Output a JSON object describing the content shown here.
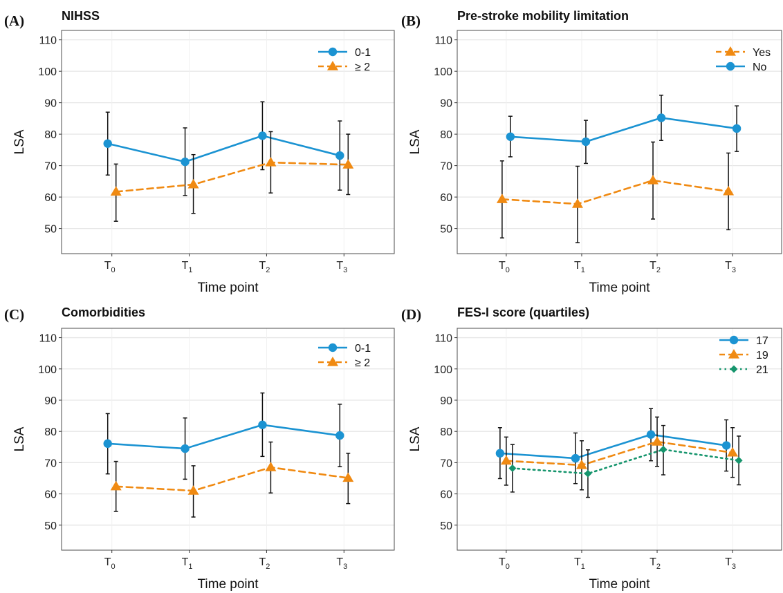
{
  "colors": {
    "blue": "#1b93d2",
    "orange": "#f08a12",
    "green": "#16956d",
    "errorbar": "#111111",
    "grid": "#e6e6e6",
    "frame": "#4d4d4d"
  },
  "chart_data": [
    {
      "type": "line",
      "letter": "(A)",
      "title": "NIHSS",
      "xlabel": "Time point",
      "ylabel": "LSA",
      "ylim": [
        42,
        113
      ],
      "yticks": [
        50,
        60,
        70,
        80,
        90,
        100,
        110
      ],
      "categories": [
        {
          "base": "T",
          "sub": "0"
        },
        {
          "base": "T",
          "sub": "1"
        },
        {
          "base": "T",
          "sub": "2"
        },
        {
          "base": "T",
          "sub": "3"
        }
      ],
      "grid": true,
      "legend": "top-right",
      "series": [
        {
          "name": "0-1",
          "color": "blue",
          "marker": "circle",
          "dash": "solid",
          "values": [
            77,
            71.2,
            79.5,
            73.2
          ],
          "upper": [
            87,
            82,
            90.3,
            84.2
          ],
          "lower": [
            67,
            60.5,
            68.7,
            62.2
          ]
        },
        {
          "name": "≥ 2",
          "color": "orange",
          "marker": "triangle",
          "dash": "dashed",
          "values": [
            61.7,
            64,
            71,
            70.3
          ],
          "upper": [
            70.5,
            73.5,
            80.8,
            80
          ],
          "lower": [
            52.3,
            54.8,
            61.3,
            60.8
          ]
        }
      ]
    },
    {
      "type": "line",
      "letter": "(B)",
      "title": "Pre-stroke mobility limitation",
      "xlabel": "Time point",
      "ylabel": "LSA",
      "ylim": [
        42,
        113
      ],
      "yticks": [
        50,
        60,
        70,
        80,
        90,
        100,
        110
      ],
      "categories": [
        {
          "base": "T",
          "sub": "0"
        },
        {
          "base": "T",
          "sub": "1"
        },
        {
          "base": "T",
          "sub": "2"
        },
        {
          "base": "T",
          "sub": "3"
        }
      ],
      "grid": true,
      "legend": "top-right",
      "series": [
        {
          "name": "Yes",
          "color": "orange",
          "marker": "triangle",
          "dash": "dashed",
          "values": [
            59.3,
            57.8,
            65.3,
            61.8
          ],
          "upper": [
            71.5,
            69.8,
            77.5,
            74
          ],
          "lower": [
            47,
            45.5,
            53,
            49.6
          ]
        },
        {
          "name": "No",
          "color": "blue",
          "marker": "circle",
          "dash": "solid",
          "values": [
            79.2,
            77.6,
            85.2,
            81.8
          ],
          "upper": [
            85.7,
            84.4,
            92.4,
            89
          ],
          "lower": [
            72.8,
            70.7,
            78,
            74.5
          ]
        }
      ]
    },
    {
      "type": "line",
      "letter": "(C)",
      "title": "Comorbidities",
      "xlabel": "Time point",
      "ylabel": "LSA",
      "ylim": [
        42,
        113
      ],
      "yticks": [
        50,
        60,
        70,
        80,
        90,
        100,
        110
      ],
      "categories": [
        {
          "base": "T",
          "sub": "0"
        },
        {
          "base": "T",
          "sub": "1"
        },
        {
          "base": "T",
          "sub": "2"
        },
        {
          "base": "T",
          "sub": "3"
        }
      ],
      "grid": true,
      "legend": "top-right",
      "series": [
        {
          "name": "0-1",
          "color": "blue",
          "marker": "circle",
          "dash": "solid",
          "values": [
            76.1,
            74.5,
            82.1,
            78.7
          ],
          "upper": [
            85.7,
            84.3,
            92.3,
            88.7
          ],
          "lower": [
            66.4,
            64.7,
            72,
            68.7
          ]
        },
        {
          "name": "≥ 2",
          "color": "orange",
          "marker": "triangle",
          "dash": "dashed",
          "values": [
            62.4,
            61,
            68.5,
            65.1
          ],
          "upper": [
            70.4,
            69,
            76.6,
            73
          ],
          "lower": [
            54.4,
            52.6,
            60.3,
            56.9
          ]
        }
      ]
    },
    {
      "type": "line",
      "letter": "(D)",
      "title": "FES-I score (quartiles)",
      "xlabel": "Time point",
      "ylabel": "LSA",
      "ylim": [
        42,
        113
      ],
      "yticks": [
        50,
        60,
        70,
        80,
        90,
        100,
        110
      ],
      "categories": [
        {
          "base": "T",
          "sub": "0"
        },
        {
          "base": "T",
          "sub": "1"
        },
        {
          "base": "T",
          "sub": "2"
        },
        {
          "base": "T",
          "sub": "3"
        }
      ],
      "grid": true,
      "legend": "top-right",
      "series": [
        {
          "name": "17",
          "color": "blue",
          "marker": "circle",
          "dash": "solid",
          "values": [
            73,
            71.4,
            79,
            75.5
          ],
          "upper": [
            81.2,
            79.5,
            87.3,
            83.7
          ],
          "lower": [
            64.9,
            63.3,
            70.6,
            67.3
          ]
        },
        {
          "name": "19",
          "color": "orange",
          "marker": "triangle",
          "dash": "dashed",
          "values": [
            70.6,
            69.2,
            76.7,
            73.2
          ],
          "upper": [
            78.2,
            77,
            84.6,
            81.2
          ],
          "lower": [
            62.8,
            61.3,
            68.8,
            65.3
          ]
        },
        {
          "name": "21",
          "color": "green",
          "marker": "diamond",
          "dash": "dotted",
          "values": [
            68.2,
            66.5,
            74.2,
            70.7
          ],
          "upper": [
            75.8,
            74.1,
            81.9,
            78.5
          ],
          "lower": [
            60.6,
            58.9,
            66.1,
            62.9
          ]
        }
      ]
    }
  ]
}
